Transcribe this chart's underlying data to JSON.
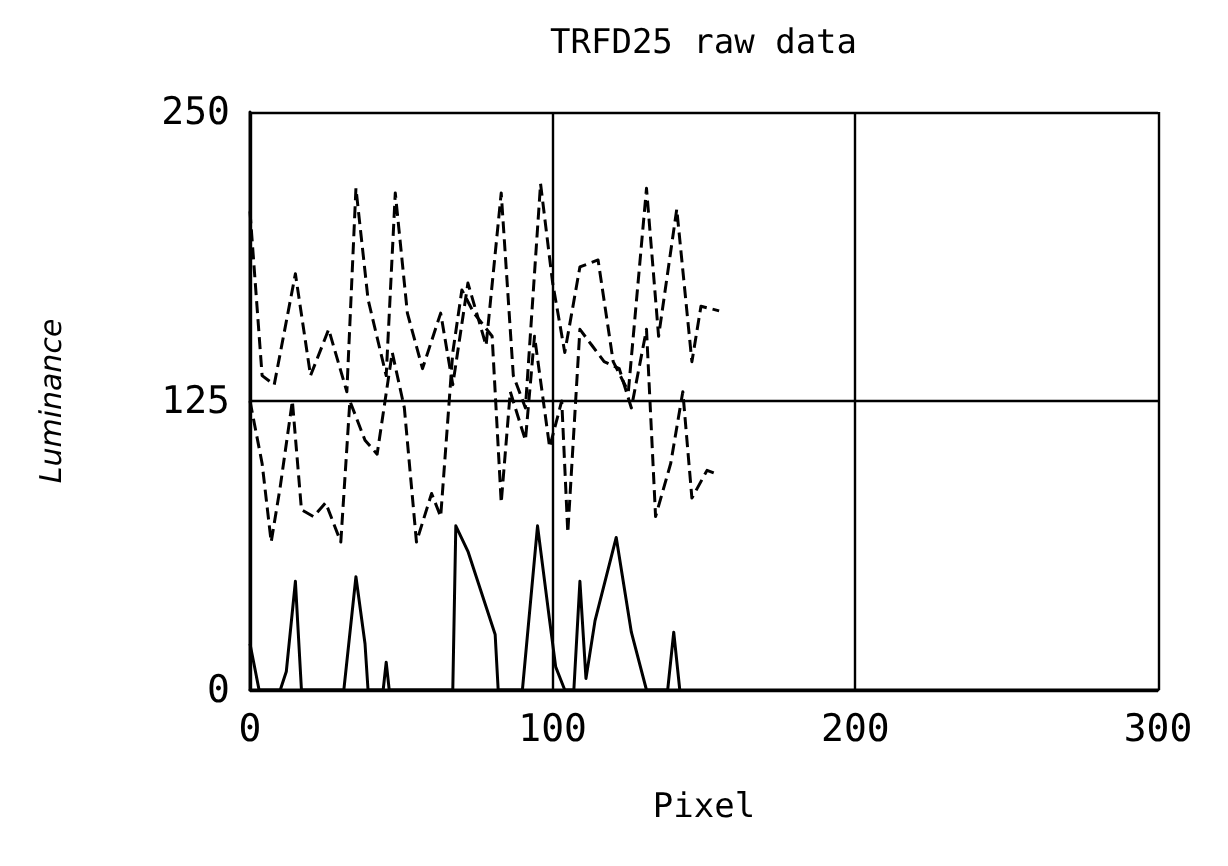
{
  "chart_data": {
    "type": "line",
    "title": "TRFD25 raw data",
    "xlabel": "Pixel",
    "ylabel": "Luminance",
    "xlim": [
      0,
      300
    ],
    "xticks": [
      0,
      100,
      200,
      300
    ],
    "ylim": [
      0,
      250
    ],
    "yticks": [
      0,
      125,
      250
    ],
    "grid": true,
    "marker": "none",
    "series": [
      {
        "color": "#000000",
        "line_style": "dashed",
        "x": [
          0,
          4,
          8,
          15,
          20,
          26,
          32,
          35,
          39,
          45,
          48,
          52,
          57,
          63,
          67,
          72,
          78,
          83,
          87,
          91,
          96,
          100,
          104,
          109,
          115,
          120,
          125,
          131,
          135,
          141,
          146,
          149,
          155
        ],
        "values": [
          207,
          136,
          132,
          180,
          136,
          156,
          129,
          217,
          169,
          136,
          215,
          163,
          139,
          163,
          132,
          176,
          149,
          215,
          136,
          122,
          219,
          176,
          146,
          183,
          186,
          142,
          129,
          217,
          153,
          208,
          142,
          166,
          164
        ]
      },
      {
        "color": "#000000",
        "line_style": "dashed",
        "x": [
          0,
          4,
          7,
          10,
          14,
          17,
          21,
          25,
          30,
          33,
          38,
          42,
          47,
          51,
          55,
          60,
          63,
          67,
          70,
          74,
          80,
          83,
          86,
          91,
          94,
          99,
          103,
          105,
          109,
          113,
          117,
          122,
          126,
          131,
          134,
          139,
          143,
          146,
          151,
          155
        ],
        "values": [
          125,
          98,
          64,
          88,
          125,
          78,
          75,
          81,
          64,
          125,
          108,
          102,
          146,
          122,
          64,
          85,
          75,
          146,
          173,
          163,
          153,
          81,
          129,
          108,
          153,
          105,
          125,
          68,
          156,
          149,
          142,
          139,
          122,
          156,
          75,
          98,
          129,
          83,
          95,
          93
        ]
      },
      {
        "color": "#000000",
        "line_style": "solid",
        "x": [
          0,
          3,
          10,
          12,
          15,
          17,
          31,
          35,
          38,
          39,
          44,
          45,
          46,
          67,
          68,
          72,
          81,
          82,
          90,
          95,
          99,
          101,
          104,
          107,
          109,
          111,
          114,
          121,
          126,
          131,
          138,
          140,
          142
        ],
        "values": [
          20,
          0,
          0,
          8,
          47,
          0,
          0,
          49,
          20,
          0,
          0,
          12,
          0,
          0,
          71,
          60,
          24,
          0,
          0,
          71,
          30,
          10,
          0,
          0,
          47,
          5,
          30,
          66,
          25,
          0,
          0,
          25,
          0
        ]
      }
    ]
  }
}
